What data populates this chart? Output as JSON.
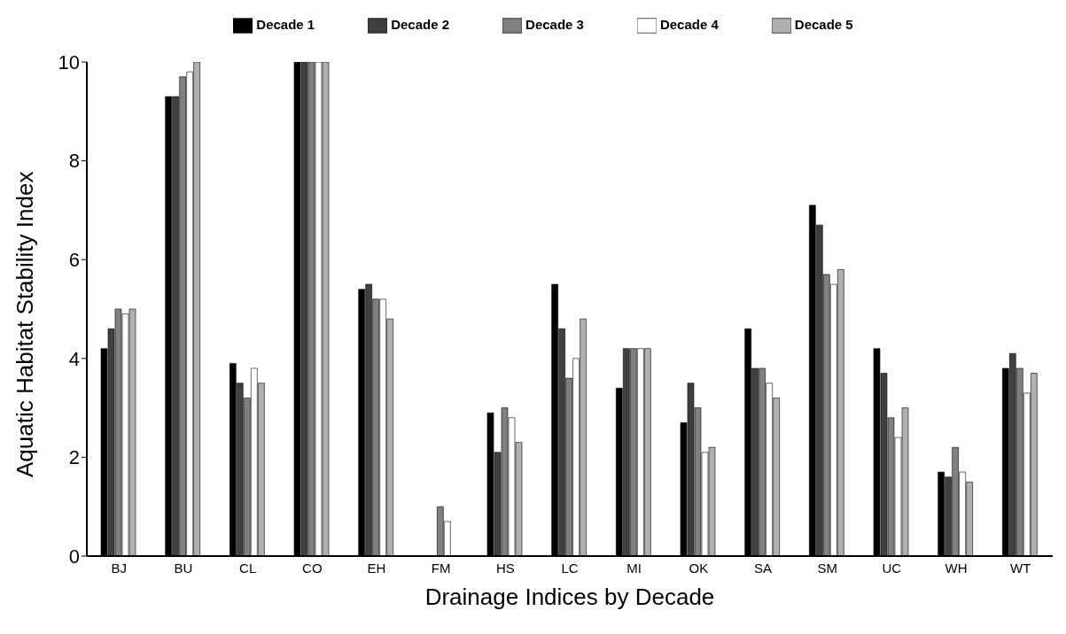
{
  "chart_data": {
    "type": "bar",
    "xlabel": "Drainage Indices by Decade",
    "ylabel": "Aquatic Habitat Stability Index",
    "categories": [
      "BJ",
      "BU",
      "CL",
      "CO",
      "EH",
      "FM",
      "HS",
      "LC",
      "MI",
      "OK",
      "SA",
      "SM",
      "UC",
      "WH",
      "WT"
    ],
    "series": [
      {
        "name": "Decade 1",
        "color": "#000000",
        "values": [
          4.2,
          9.3,
          3.9,
          10,
          5.4,
          0,
          2.9,
          5.5,
          3.4,
          2.7,
          4.6,
          7.1,
          4.2,
          1.7,
          3.8
        ]
      },
      {
        "name": "Decade 2",
        "color": "#404040",
        "values": [
          4.6,
          9.3,
          3.5,
          10,
          5.5,
          0,
          2.1,
          4.6,
          4.2,
          3.5,
          3.8,
          6.7,
          3.7,
          1.6,
          4.1
        ]
      },
      {
        "name": "Decade 3",
        "color": "#808080",
        "values": [
          5.0,
          9.7,
          3.2,
          10,
          5.2,
          1.0,
          3.0,
          3.6,
          4.2,
          3.0,
          3.8,
          5.7,
          2.8,
          2.2,
          3.8
        ]
      },
      {
        "name": "Decade 4",
        "color": "#ffffff",
        "values": [
          4.9,
          9.8,
          3.8,
          10,
          5.2,
          0.7,
          2.8,
          4.0,
          4.2,
          2.1,
          3.5,
          5.5,
          2.4,
          1.7,
          3.3
        ]
      },
      {
        "name": "Decade 5",
        "color": "#b0b0b0",
        "values": [
          5.0,
          10,
          3.5,
          10,
          4.8,
          0,
          2.3,
          4.8,
          4.2,
          2.2,
          3.2,
          5.8,
          3.0,
          1.5,
          3.7
        ]
      }
    ],
    "ylim": [
      0,
      10
    ],
    "yticks": [
      0,
      2,
      4,
      6,
      8,
      10
    ],
    "grid": false,
    "legend": "top"
  }
}
